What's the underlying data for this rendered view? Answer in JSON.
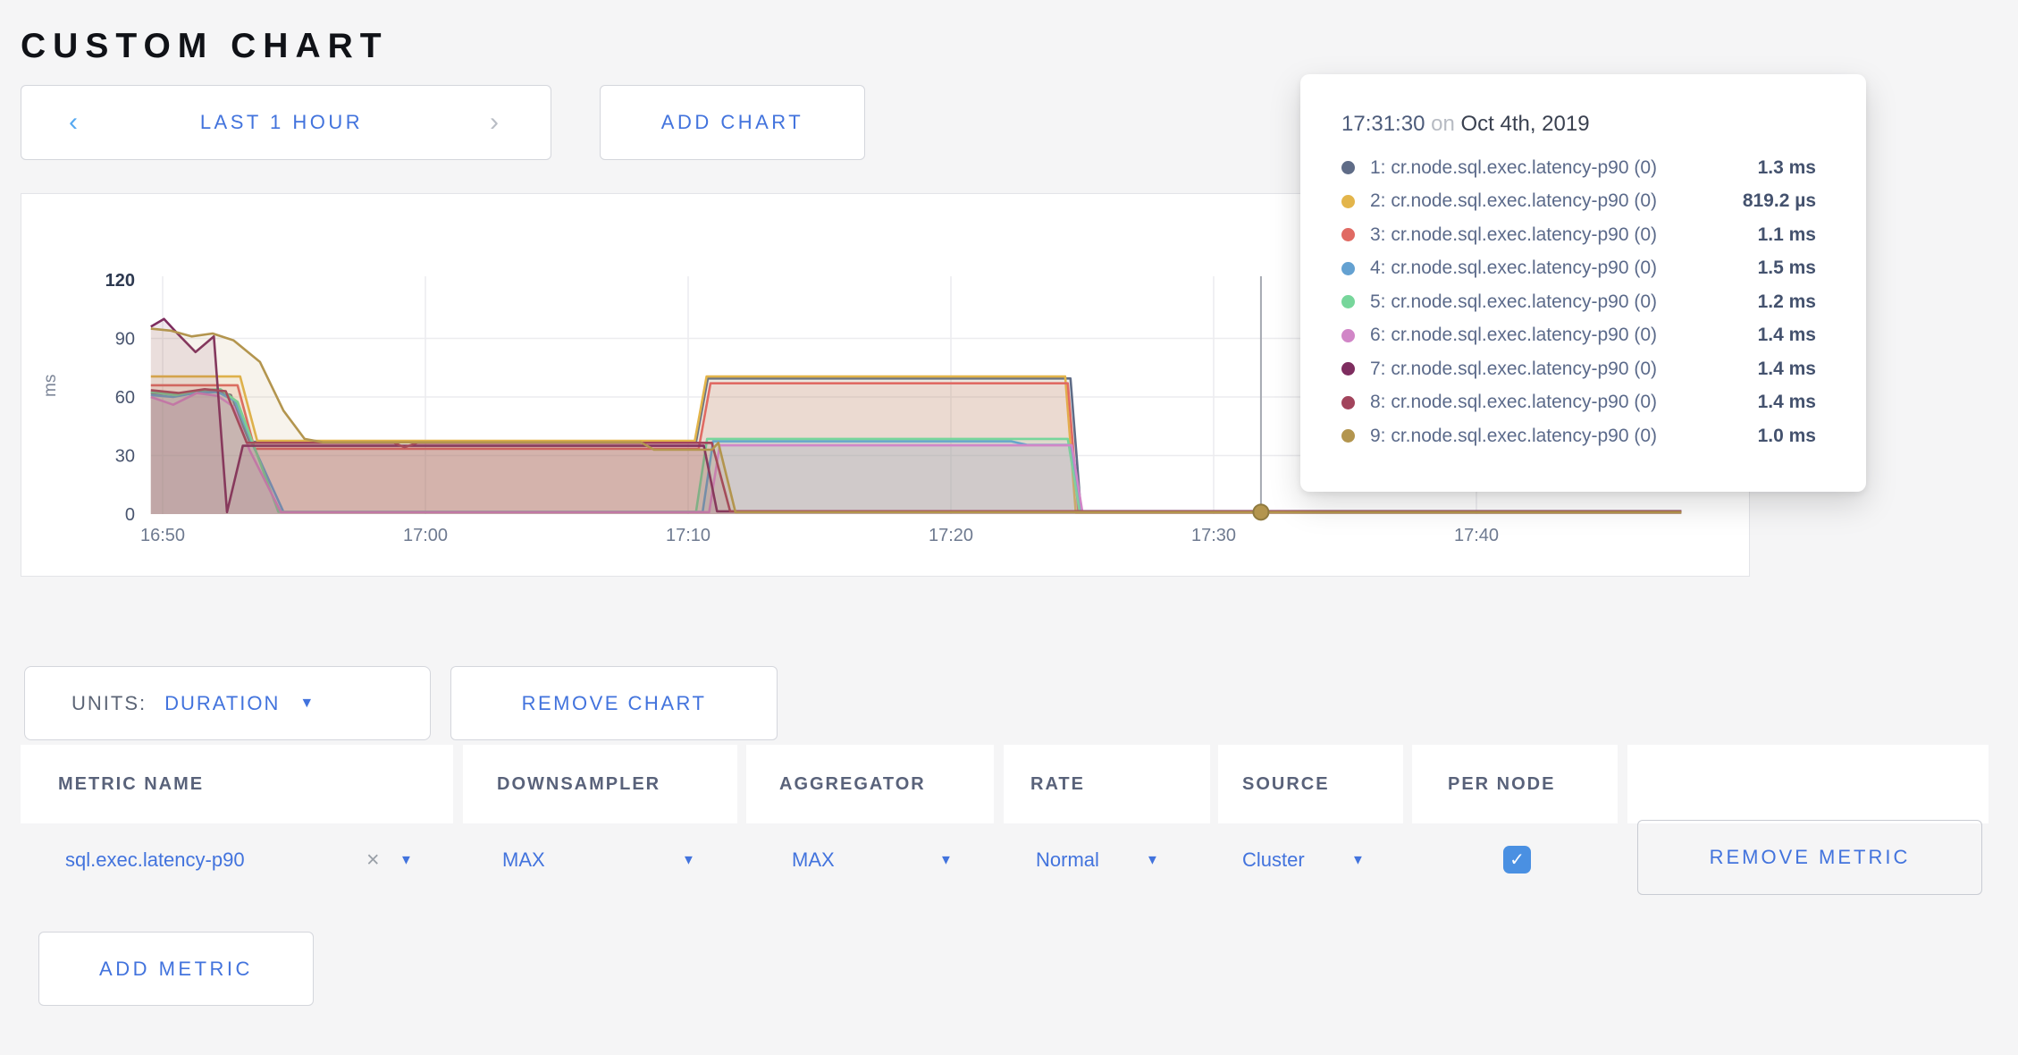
{
  "page": {
    "title": "CUSTOM CHART"
  },
  "toolbar": {
    "prev_label": "‹",
    "range_label": "LAST 1 HOUR",
    "next_label": "›",
    "add_chart_label": "ADD CHART"
  },
  "chart_controls": {
    "units_label": "UNITS:",
    "units_value": "DURATION",
    "remove_chart_label": "REMOVE CHART",
    "add_metric_label": "ADD METRIC"
  },
  "icons": {
    "caret_down": "▼",
    "close": "×",
    "check": "✓"
  },
  "metrics_table": {
    "headers": [
      "METRIC NAME",
      "DOWNSAMPLER",
      "AGGREGATOR",
      "RATE",
      "SOURCE",
      "PER NODE"
    ],
    "row": {
      "metric_name": "sql.exec.latency-p90",
      "downsampler": "MAX",
      "aggregator": "MAX",
      "rate": "Normal",
      "source": "Cluster",
      "per_node_checked": true,
      "remove_label": "REMOVE METRIC"
    }
  },
  "tooltip": {
    "time": "17:31:30",
    "on_word": "on",
    "date": "Oct 4th, 2019"
  },
  "chart_data": {
    "type": "line",
    "title": "Custom chart: sql.exec.latency-p90 per node",
    "ylabel": "ms",
    "legend_position": "tooltip-overlay",
    "grid": true,
    "x_axis": {
      "unit": "time",
      "domain_minutes_after_1600": [
        49.55,
        107.8
      ],
      "ticks": [
        {
          "label": "16:50",
          "t": 50
        },
        {
          "label": "17:00",
          "t": 60
        },
        {
          "label": "17:10",
          "t": 70
        },
        {
          "label": "17:20",
          "t": 80
        },
        {
          "label": "17:30",
          "t": 90
        },
        {
          "label": "17:40",
          "t": 100
        }
      ]
    },
    "y_axis": {
      "unit": "ms",
      "ticks": [
        0,
        30,
        60,
        90,
        120
      ],
      "range": [
        0,
        120
      ]
    },
    "cursor": {
      "time": "17:31:30",
      "t": 91.8,
      "dot_series_index": 8,
      "dot_value": 1.0
    },
    "series": [
      {
        "name": "1: cr.node.sql.exec.latency-p90 (0)",
        "color": "#5f6c87",
        "cursor_value": "1.3 ms",
        "points": [
          [
            49.55,
            62
          ],
          [
            50.3,
            61.5
          ],
          [
            51.1,
            62.5
          ],
          [
            51.9,
            63
          ],
          [
            52.6,
            61
          ],
          [
            53.3,
            37
          ],
          [
            70.3,
            37
          ],
          [
            70.75,
            69.5
          ],
          [
            84.55,
            69.5
          ],
          [
            84.95,
            1.3
          ],
          [
            107.8,
            1.3
          ]
        ]
      },
      {
        "name": "2: cr.node.sql.exec.latency-p90 (0)",
        "color": "#e3b54b",
        "cursor_value": "819.2 µs",
        "points": [
          [
            49.55,
            70.5
          ],
          [
            52.95,
            70.5
          ],
          [
            53.6,
            37.5
          ],
          [
            70.25,
            37.5
          ],
          [
            70.7,
            70.5
          ],
          [
            84.35,
            70.5
          ],
          [
            84.75,
            0.82
          ],
          [
            107.8,
            0.82
          ]
        ]
      },
      {
        "name": "3: cr.node.sql.exec.latency-p90 (0)",
        "color": "#e06a63",
        "cursor_value": "1.1 ms",
        "points": [
          [
            49.55,
            66
          ],
          [
            52.85,
            66
          ],
          [
            53.5,
            33.5
          ],
          [
            70.4,
            33.5
          ],
          [
            70.85,
            67
          ],
          [
            84.45,
            67
          ],
          [
            84.85,
            1.1
          ],
          [
            107.8,
            1.1
          ]
        ]
      },
      {
        "name": "4: cr.node.sql.exec.latency-p90 (0)",
        "color": "#64a1d1",
        "cursor_value": "1.5 ms",
        "points": [
          [
            49.55,
            61
          ],
          [
            50.4,
            60
          ],
          [
            51.2,
            62
          ],
          [
            52.1,
            62.5
          ],
          [
            52.75,
            58
          ],
          [
            53.45,
            35
          ],
          [
            54.6,
            1.1
          ],
          [
            70.55,
            1.1
          ],
          [
            70.95,
            37.3
          ],
          [
            82.3,
            37.3
          ],
          [
            82.9,
            35.4
          ],
          [
            84.55,
            35.4
          ],
          [
            84.95,
            1.5
          ],
          [
            107.8,
            1.5
          ]
        ]
      },
      {
        "name": "5: cr.node.sql.exec.latency-p90 (0)",
        "color": "#77d69b",
        "cursor_value": "1.2 ms",
        "points": [
          [
            49.55,
            62.5
          ],
          [
            50.5,
            61
          ],
          [
            51.4,
            63.5
          ],
          [
            52.2,
            64
          ],
          [
            52.85,
            57.5
          ],
          [
            53.5,
            34
          ],
          [
            54.4,
            1.2
          ],
          [
            70.3,
            1.2
          ],
          [
            70.72,
            38.5
          ],
          [
            84.45,
            38.5
          ],
          [
            84.9,
            1.2
          ],
          [
            107.8,
            1.2
          ]
        ]
      },
      {
        "name": "6: cr.node.sql.exec.latency-p90 (0)",
        "color": "#d186c7",
        "cursor_value": "1.4 ms",
        "points": [
          [
            49.55,
            60
          ],
          [
            50.4,
            56
          ],
          [
            51.3,
            62
          ],
          [
            52.1,
            60.5
          ],
          [
            52.7,
            55
          ],
          [
            53.3,
            33
          ],
          [
            54.5,
            1.0
          ],
          [
            70.8,
            1.0
          ],
          [
            71.2,
            35.2
          ],
          [
            84.6,
            35.2
          ],
          [
            85.0,
            1.4
          ],
          [
            107.8,
            1.4
          ]
        ]
      },
      {
        "name": "7: cr.node.sql.exec.latency-p90 (0)",
        "color": "#7e2d5f",
        "cursor_value": "1.4 ms",
        "points": [
          [
            49.55,
            96
          ],
          [
            50.05,
            100
          ],
          [
            50.6,
            92
          ],
          [
            51.25,
            83
          ],
          [
            51.95,
            91
          ],
          [
            52.45,
            1
          ],
          [
            53.05,
            35
          ],
          [
            70.6,
            35
          ],
          [
            71.1,
            1.4
          ],
          [
            107.8,
            1.4
          ]
        ]
      },
      {
        "name": "8: cr.node.sql.exec.latency-p90 (0)",
        "color": "#a2445c",
        "cursor_value": "1.4 ms",
        "points": [
          [
            49.55,
            63.5
          ],
          [
            50.6,
            62
          ],
          [
            51.6,
            64
          ],
          [
            52.4,
            63
          ],
          [
            53.2,
            36.5
          ],
          [
            58.8,
            36.5
          ],
          [
            59.2,
            34.3
          ],
          [
            59.7,
            36.5
          ],
          [
            70.9,
            36.5
          ],
          [
            71.6,
            1.4
          ],
          [
            107.8,
            1.4
          ]
        ]
      },
      {
        "name": "9: cr.node.sql.exec.latency-p90 (0)",
        "color": "#b3954e",
        "cursor_value": "1.0 ms",
        "points": [
          [
            49.55,
            95
          ],
          [
            50.3,
            94
          ],
          [
            51.1,
            91
          ],
          [
            51.9,
            92.5
          ],
          [
            52.7,
            89
          ],
          [
            53.7,
            78
          ],
          [
            54.6,
            53
          ],
          [
            55.4,
            38.5
          ],
          [
            56.1,
            36.8
          ],
          [
            68.2,
            36.8
          ],
          [
            68.7,
            33
          ],
          [
            70.9,
            33
          ],
          [
            71.15,
            36.5
          ],
          [
            71.8,
            1.0
          ],
          [
            107.8,
            1.0
          ]
        ]
      }
    ]
  }
}
